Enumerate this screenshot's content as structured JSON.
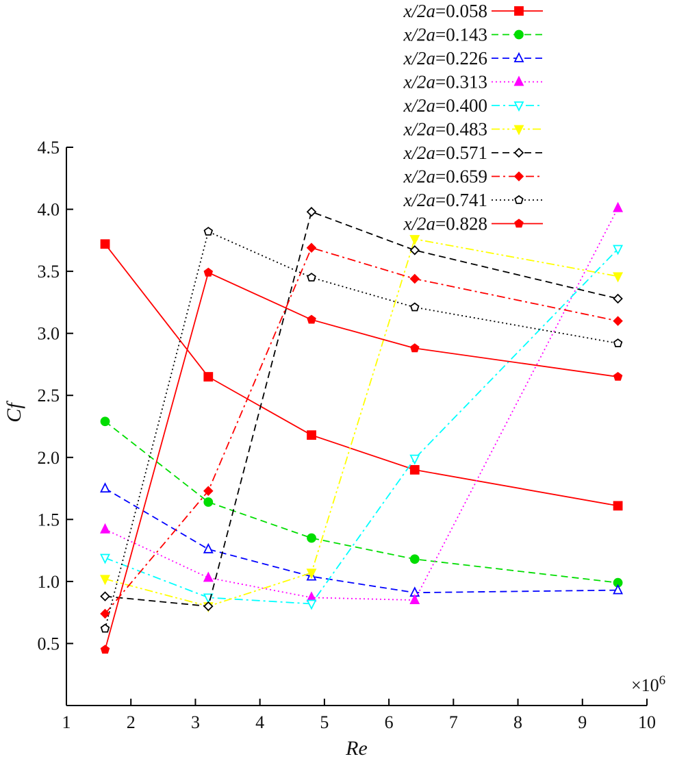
{
  "chart_data": {
    "type": "line",
    "title": "",
    "xlabel": "Re",
    "ylabel": "Cf",
    "x_multiplier": "×10",
    "x_multiplier_exp": "6",
    "xlim": [
      1,
      10
    ],
    "ylim": [
      0,
      4.5
    ],
    "xticks": [
      "1",
      "2",
      "3",
      "4",
      "5",
      "6",
      "7",
      "8",
      "9",
      "10"
    ],
    "yticks": [
      "0.5",
      "1.0",
      "1.5",
      "2.0",
      "2.5",
      "3.0",
      "3.5",
      "4.0",
      "4.5"
    ],
    "grid": false,
    "legend_position": "top-right",
    "series": [
      {
        "name": "x/2a=0.058",
        "label_var": "x/2a",
        "label_val": "=0.058",
        "color": "#ff0000",
        "dash": "solid",
        "marker": "square-filled",
        "points": [
          [
            1.6,
            3.72
          ],
          [
            3.2,
            2.65
          ],
          [
            4.8,
            2.18
          ],
          [
            6.4,
            1.9
          ],
          [
            9.55,
            1.61
          ]
        ]
      },
      {
        "name": "x/2a=0.143",
        "label_var": "x/2a",
        "label_val": "=0.143",
        "color": "#00dd00",
        "dash": "dashed",
        "marker": "circle-filled",
        "points": [
          [
            1.6,
            2.29
          ],
          [
            3.2,
            1.64
          ],
          [
            4.8,
            1.35
          ],
          [
            6.4,
            1.18
          ],
          [
            9.55,
            0.99
          ]
        ]
      },
      {
        "name": "x/2a=0.226",
        "label_var": "x/2a",
        "label_val": "=0.226",
        "color": "#0000ff",
        "dash": "dashed",
        "marker": "triangle-up-open",
        "points": [
          [
            1.6,
            1.75
          ],
          [
            3.2,
            1.26
          ],
          [
            4.8,
            1.04
          ],
          [
            6.4,
            0.91
          ],
          [
            9.55,
            0.93
          ]
        ]
      },
      {
        "name": "x/2a=0.313",
        "label_var": "x/2a",
        "label_val": "=0.313",
        "color": "#ff00ff",
        "dash": "dotted",
        "marker": "triangle-up-filled",
        "points": [
          [
            1.6,
            1.42
          ],
          [
            3.2,
            1.03
          ],
          [
            4.8,
            0.87
          ],
          [
            6.4,
            0.85
          ],
          [
            9.55,
            4.01
          ]
        ]
      },
      {
        "name": "x/2a=0.400",
        "label_var": "x/2a",
        "label_val": "=0.400",
        "color": "#00ffff",
        "dash": "dashdot",
        "marker": "triangle-down-open",
        "points": [
          [
            1.6,
            1.19
          ],
          [
            3.2,
            0.87
          ],
          [
            4.8,
            0.82
          ],
          [
            6.4,
            1.99
          ],
          [
            9.55,
            3.68
          ]
        ]
      },
      {
        "name": "x/2a=0.483",
        "label_var": "x/2a",
        "label_val": "=0.483",
        "color": "#ffff00",
        "dash": "dashdotdot",
        "marker": "triangle-down-filled",
        "points": [
          [
            1.6,
            1.02
          ],
          [
            3.2,
            0.8
          ],
          [
            4.8,
            1.07
          ],
          [
            6.4,
            3.76
          ],
          [
            9.55,
            3.46
          ]
        ]
      },
      {
        "name": "x/2a=0.571",
        "label_var": "x/2a",
        "label_val": "=0.571",
        "color": "#000000",
        "dash": "dashed",
        "marker": "diamond-open",
        "points": [
          [
            1.6,
            0.88
          ],
          [
            3.2,
            0.8
          ],
          [
            4.8,
            3.98
          ],
          [
            6.4,
            3.67
          ],
          [
            9.55,
            3.28
          ]
        ]
      },
      {
        "name": "x/2a=0.659",
        "label_var": "x/2a",
        "label_val": "=0.659",
        "color": "#ff0000",
        "dash": "dashdot",
        "marker": "diamond-filled",
        "points": [
          [
            1.6,
            0.74
          ],
          [
            3.2,
            1.73
          ],
          [
            4.8,
            3.69
          ],
          [
            6.4,
            3.44
          ],
          [
            9.55,
            3.1
          ]
        ]
      },
      {
        "name": "x/2a=0.741",
        "label_var": "x/2a",
        "label_val": "=0.741",
        "color": "#000000",
        "dash": "dotted",
        "marker": "pentagon-open",
        "points": [
          [
            1.6,
            0.62
          ],
          [
            3.2,
            3.82
          ],
          [
            4.8,
            3.45
          ],
          [
            6.4,
            3.21
          ],
          [
            9.55,
            2.92
          ]
        ]
      },
      {
        "name": "x/2a=0.828",
        "label_var": "x/2a",
        "label_val": "=0.828",
        "color": "#ff0000",
        "dash": "solid",
        "marker": "pentagon-filled",
        "points": [
          [
            1.6,
            0.45
          ],
          [
            3.2,
            3.49
          ],
          [
            4.8,
            3.11
          ],
          [
            6.4,
            2.88
          ],
          [
            9.55,
            2.65
          ]
        ]
      }
    ]
  }
}
